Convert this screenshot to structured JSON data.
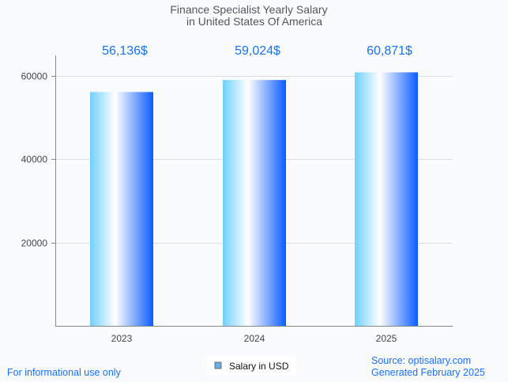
{
  "chart_data": {
    "type": "bar",
    "title": "Finance Specialist Yearly Salary",
    "subtitle": "in United States Of America",
    "categories": [
      "2023",
      "2024",
      "2025"
    ],
    "values": [
      56136,
      59024,
      60871
    ],
    "value_labels": [
      "56,136$",
      "59,024$",
      "60,871$"
    ],
    "ylim": [
      0,
      65000
    ],
    "yticks": [
      20000,
      40000,
      60000
    ],
    "ytick_labels": [
      "20000",
      "40000",
      "60000"
    ],
    "xlabel": "",
    "ylabel": "",
    "grid": true,
    "legend": {
      "label": "Salary in USD",
      "placement": "bottom-center",
      "color": "#6aaee8"
    },
    "bar_gradient": [
      "#6fd0ff",
      "#ffffff",
      "#0a5cff"
    ]
  },
  "footer": {
    "disclaimer": "For informational use only",
    "source": "Source: optisalary.com",
    "generated": "Generated February 2025"
  }
}
